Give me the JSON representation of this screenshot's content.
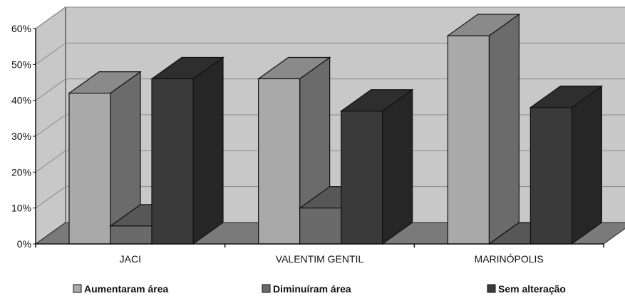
{
  "chart_data": {
    "type": "bar",
    "categories": [
      "JACI",
      "VALENTIM GENTIL",
      "MARINÓPOLIS"
    ],
    "series": [
      {
        "name": "Aumentaram área",
        "values": [
          42,
          46,
          58
        ]
      },
      {
        "name": "Diminuíram área",
        "values": [
          5,
          10,
          0
        ]
      },
      {
        "name": "Sem alteração",
        "values": [
          46,
          37,
          38
        ]
      }
    ],
    "yticks": [
      "0%",
      "10%",
      "20%",
      "30%",
      "40%",
      "50%",
      "60%"
    ],
    "ylim": [
      0,
      60
    ],
    "grid": true,
    "legend_position": "bottom",
    "colors": {
      "series": [
        {
          "front": "#a9a9a9",
          "top": "#8a8a8a",
          "side": "#6b6b6b"
        },
        {
          "front": "#6a6a6a",
          "top": "#575757",
          "side": "#474747"
        },
        {
          "front": "#3a3a3a",
          "top": "#2e2e2e",
          "side": "#262626"
        }
      ],
      "wall": "#c8c8c8",
      "floor": "#7a7a7a",
      "grid": "#8a8a8a"
    }
  }
}
